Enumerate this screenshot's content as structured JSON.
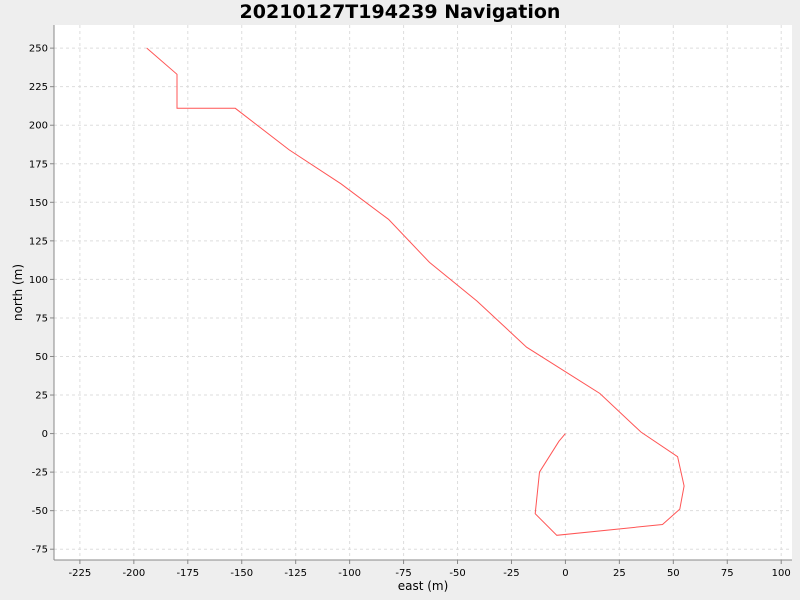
{
  "chart_data": {
    "type": "line",
    "title": "20210127T194239 Navigation",
    "xlabel": "east (m)",
    "ylabel": "north (m)",
    "xlim": [
      -237,
      105
    ],
    "ylim": [
      -82,
      265
    ],
    "grid": true,
    "x_ticks": [
      -225,
      -200,
      -175,
      -150,
      -125,
      -100,
      -75,
      -50,
      -25,
      0,
      25,
      50,
      75,
      100
    ],
    "y_ticks": [
      -75,
      -50,
      -25,
      0,
      25,
      50,
      75,
      100,
      125,
      150,
      175,
      200,
      225,
      250
    ],
    "colors": {
      "line": "#ff5555",
      "grid": "#dddddd",
      "plot_bg": "#ffffff",
      "page_bg": "#eeeeee"
    },
    "series": [
      {
        "x": [
          -194,
          -180,
          -180,
          -153,
          -128,
          -104,
          -82,
          -63,
          -41,
          -18,
          16,
          35,
          52,
          55,
          53,
          45,
          -4,
          -14,
          -12,
          -3,
          0
        ],
        "y": [
          250,
          233,
          211,
          211,
          184,
          162,
          139,
          111,
          86,
          56,
          26,
          1,
          -15,
          -34,
          -49,
          -59,
          -66,
          -52,
          -25,
          -5,
          0
        ]
      }
    ]
  }
}
